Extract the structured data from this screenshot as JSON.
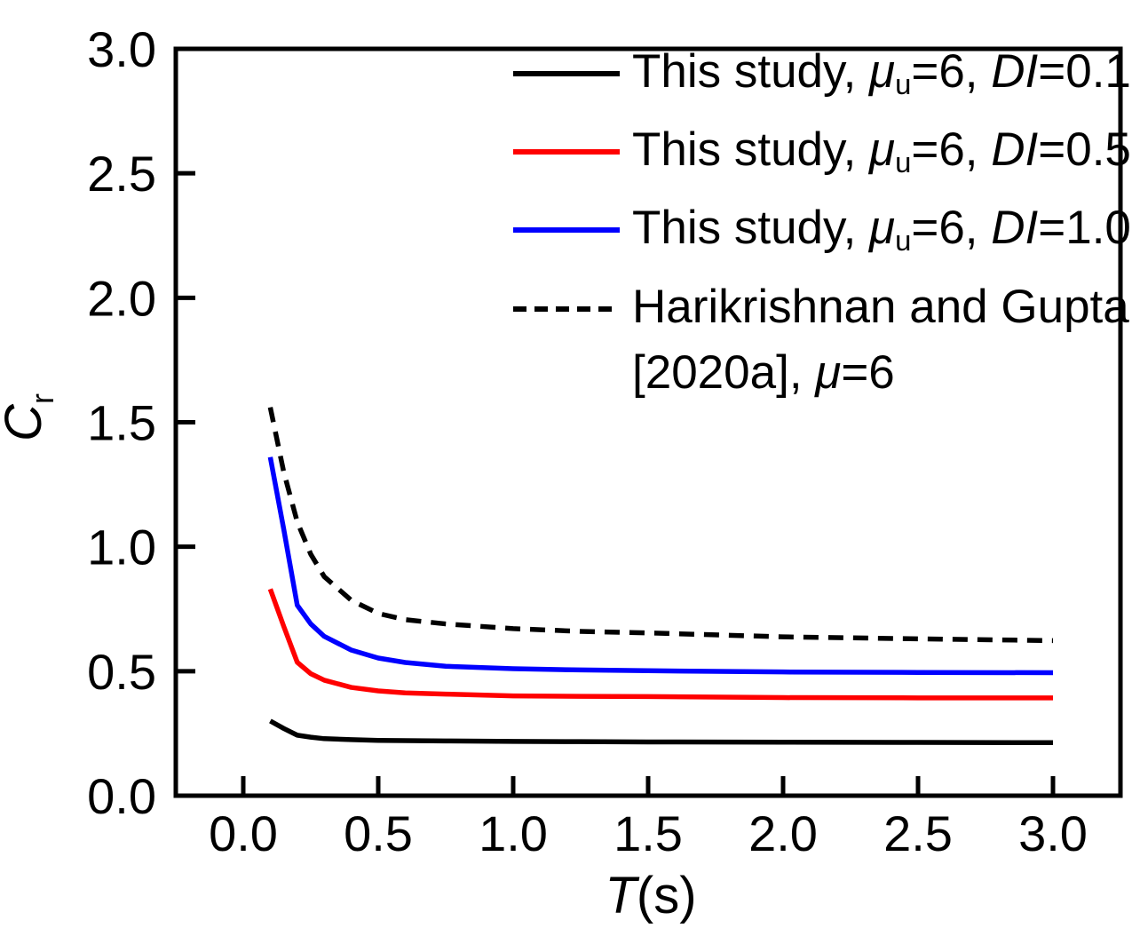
{
  "figure": {
    "background": "#ffffff",
    "text_color": "#000000"
  },
  "chart_data": {
    "type": "line",
    "title": "",
    "xlabel": "T(s)",
    "ylabel": "Cr",
    "xlabel_segments": [
      {
        "t": "T",
        "i": true
      },
      {
        "t": "(s)"
      }
    ],
    "ylabel_segments": [
      {
        "t": "C",
        "i": true
      },
      {
        "t": "r",
        "sub": true
      }
    ],
    "xlim": [
      -0.25,
      3.25
    ],
    "ylim": [
      0,
      3.0
    ],
    "xticks": [
      "0.0",
      "0.5",
      "1.0",
      "1.5",
      "2.0",
      "2.5",
      "3.0"
    ],
    "yticks": [
      "0.0",
      "0.5",
      "1.0",
      "1.5",
      "2.0",
      "2.5",
      "3.0"
    ],
    "grid": false,
    "legend_position": "upper-right-inside",
    "x": [
      0.1,
      0.15,
      0.2,
      0.25,
      0.3,
      0.4,
      0.5,
      0.6,
      0.75,
      1.0,
      1.25,
      1.5,
      2.0,
      2.5,
      3.0
    ],
    "series": [
      {
        "name": "This study, μu=6, DI=0.1",
        "name_segments": [
          {
            "t": "This study, "
          },
          {
            "t": "μ",
            "i": true
          },
          {
            "t": "u",
            "sub": true
          },
          {
            "t": "=6, "
          },
          {
            "t": "DI",
            "i": true
          },
          {
            "t": "=0.1"
          }
        ],
        "color": "#000000",
        "dash": false,
        "values": [
          0.3,
          0.27,
          0.243,
          0.235,
          0.229,
          0.225,
          0.222,
          0.221,
          0.22,
          0.218,
          0.217,
          0.216,
          0.215,
          0.214,
          0.213
        ]
      },
      {
        "name": "This study, μu=6, DI=0.5",
        "name_segments": [
          {
            "t": "This study, "
          },
          {
            "t": "μ",
            "i": true
          },
          {
            "t": "u",
            "sub": true
          },
          {
            "t": "=6, "
          },
          {
            "t": "DI",
            "i": true
          },
          {
            "t": "=0.5"
          }
        ],
        "color": "#ff0000",
        "dash": false,
        "values": [
          0.83,
          0.68,
          0.536,
          0.49,
          0.464,
          0.435,
          0.421,
          0.413,
          0.408,
          0.401,
          0.399,
          0.398,
          0.394,
          0.393,
          0.393
        ]
      },
      {
        "name": "This study, μu=6, DI=1.0",
        "name_segments": [
          {
            "t": "This study, "
          },
          {
            "t": "μ",
            "i": true
          },
          {
            "t": "u",
            "sub": true
          },
          {
            "t": "=6, "
          },
          {
            "t": "DI",
            "i": true
          },
          {
            "t": "=1.0"
          }
        ],
        "color": "#0000ff",
        "dash": false,
        "values": [
          1.36,
          1.07,
          0.765,
          0.69,
          0.64,
          0.585,
          0.553,
          0.535,
          0.52,
          0.51,
          0.505,
          0.502,
          0.497,
          0.495,
          0.494
        ]
      },
      {
        "name": "Harikrishnan and Gupta [2020a], μ=6",
        "name_segments": [
          {
            "t": "Harikrishnan and Gupta"
          },
          {
            "br": true
          },
          {
            "t": "[2020a], "
          },
          {
            "t": "μ",
            "i": true
          },
          {
            "t": "=6"
          }
        ],
        "color": "#000000",
        "dash": true,
        "values": [
          1.56,
          1.3,
          1.1,
          0.97,
          0.88,
          0.785,
          0.732,
          0.707,
          0.69,
          0.671,
          0.66,
          0.654,
          0.638,
          0.63,
          0.623
        ]
      }
    ]
  }
}
